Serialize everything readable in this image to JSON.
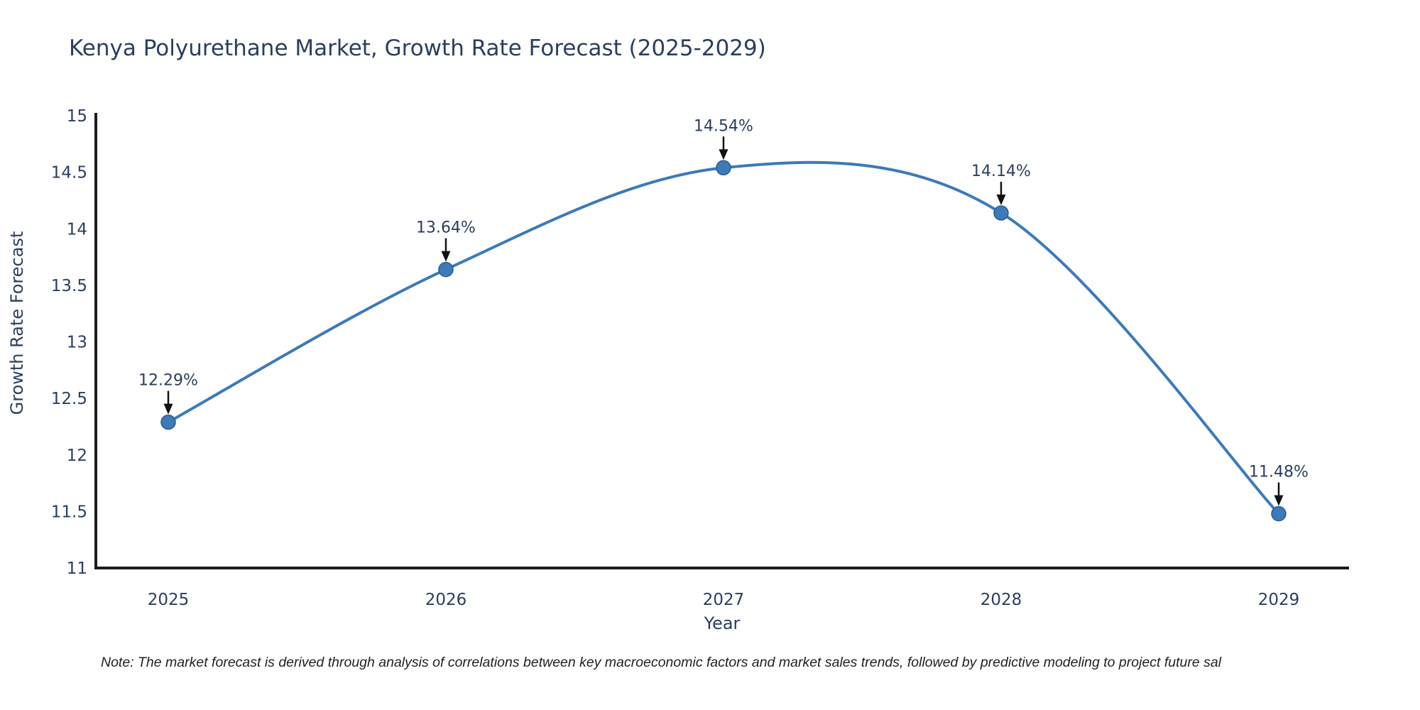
{
  "title": "Kenya Polyurethane Market, Growth Rate Forecast (2025-2029)",
  "note": "Note: The market forecast is derived through analysis of correlations between key macroeconomic factors and market sales trends, followed by predictive modeling to project future sal",
  "chart_data": {
    "type": "line",
    "line_shape": "spline",
    "title": "Kenya Polyurethane Market, Growth Rate Forecast (2025-2029)",
    "xlabel": "Year",
    "ylabel": "Growth Rate Forecast",
    "categories": [
      "2025",
      "2026",
      "2027",
      "2028",
      "2029"
    ],
    "values": [
      12.29,
      13.64,
      14.54,
      14.14,
      11.48
    ],
    "point_labels": [
      "12.29%",
      "13.64%",
      "14.54%",
      "14.14%",
      "11.48%"
    ],
    "ylim": [
      11,
      15
    ],
    "y_ticks": [
      11,
      11.5,
      12,
      12.5,
      13,
      13.5,
      14,
      14.5,
      15
    ],
    "y_tick_labels": [
      "11",
      "11.5",
      "12",
      "12.5",
      "13",
      "13.5",
      "14",
      "14.5",
      "15"
    ],
    "grid": false,
    "legend_position": "none",
    "colors": {
      "line": "#3d7ab7",
      "marker": "#3d7ab7",
      "marker_edge": "#2a5d8f",
      "text": "#2a3f5f",
      "axis": "#1d1d1d",
      "arrow": "#111111"
    }
  }
}
